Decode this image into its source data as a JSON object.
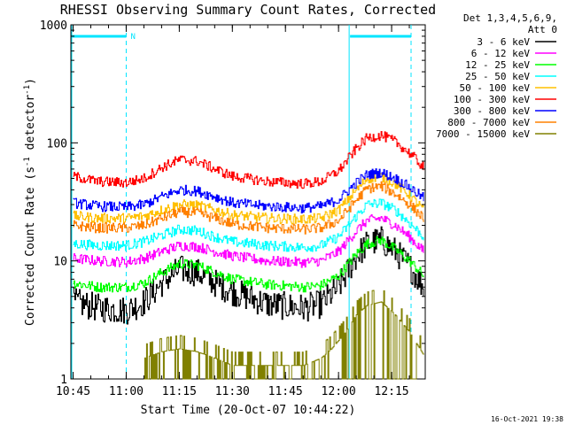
{
  "chart_data": {
    "type": "line",
    "title": "RHESSI Observing Summary Count Rates, Corrected",
    "xlabel": "Start Time (20-Oct-07 10:44:22)",
    "ylabel": "Corrected Count Rate (s",
    "ylabel_sup1": "-1",
    "ylabel_mid": " detector",
    "ylabel_sup2": "-1",
    "ylabel_end": ")",
    "y_scale": "log",
    "ylim": [
      1,
      1000
    ],
    "xlim": [
      "10:44:22",
      "12:24:30"
    ],
    "x_ticks": [
      "10:45",
      "11:00",
      "11:15",
      "11:30",
      "11:45",
      "12:00",
      "12:15"
    ],
    "y_ticks": [
      "1",
      "10",
      "100",
      "1000"
    ],
    "legend_header": [
      "Det 1,3,4,5,6,9,",
      "Att 0"
    ],
    "legend_position": "right",
    "series": [
      {
        "name": "3 - 6 keV",
        "color": "#000000",
        "x": [
          "10:45",
          "10:52",
          "11:00",
          "11:05",
          "11:10",
          "11:15",
          "11:20",
          "11:25",
          "11:30",
          "11:40",
          "11:50",
          "11:55",
          "12:00",
          "12:05",
          "12:08",
          "12:12",
          "12:16",
          "12:20",
          "12:24"
        ],
        "y": [
          4.5,
          4.0,
          3.8,
          4.5,
          6.5,
          8.5,
          8.0,
          6.5,
          5.5,
          4.3,
          4.0,
          4.3,
          6.0,
          11,
          14,
          15,
          12,
          9,
          6
        ]
      },
      {
        "name": "6 - 12 keV",
        "color": "#ff00ff",
        "x": [
          "10:45",
          "10:52",
          "11:00",
          "11:05",
          "11:10",
          "11:15",
          "11:20",
          "11:25",
          "11:30",
          "11:40",
          "11:50",
          "11:55",
          "12:00",
          "12:05",
          "12:08",
          "12:12",
          "12:16",
          "12:20",
          "12:24"
        ],
        "y": [
          10.5,
          10,
          9.8,
          10.5,
          12,
          13.5,
          13.2,
          12,
          11,
          10,
          9.7,
          10,
          12,
          18,
          22,
          23,
          20,
          16,
          12
        ]
      },
      {
        "name": "12 - 25 keV",
        "color": "#00ff00",
        "x": [
          "10:45",
          "10:52",
          "11:00",
          "11:05",
          "11:10",
          "11:15",
          "11:20",
          "11:25",
          "11:30",
          "11:40",
          "11:50",
          "11:55",
          "12:00",
          "12:05",
          "12:08",
          "12:12",
          "12:16",
          "12:20",
          "12:24"
        ],
        "y": [
          6.5,
          6.0,
          6.0,
          6.5,
          8.0,
          9.5,
          9.2,
          8.0,
          7.0,
          6.3,
          6.0,
          6.2,
          7.5,
          11.5,
          14,
          15,
          12.5,
          10,
          7.5
        ]
      },
      {
        "name": "25 - 50 keV",
        "color": "#00ffff",
        "x": [
          "10:45",
          "10:52",
          "11:00",
          "11:05",
          "11:10",
          "11:15",
          "11:20",
          "11:25",
          "11:30",
          "11:40",
          "11:50",
          "11:55",
          "12:00",
          "12:05",
          "12:08",
          "12:12",
          "12:16",
          "12:20",
          "12:24"
        ],
        "y": [
          14,
          13.5,
          13.5,
          14.5,
          16.5,
          18.5,
          18,
          16,
          14.5,
          13.5,
          13,
          13.5,
          16,
          24,
          30,
          31,
          27,
          21,
          16
        ]
      },
      {
        "name": "50 - 100 keV",
        "color": "#ffc000",
        "x": [
          "10:45",
          "10:52",
          "11:00",
          "11:05",
          "11:10",
          "11:15",
          "11:20",
          "11:25",
          "11:30",
          "11:40",
          "11:50",
          "11:55",
          "12:00",
          "12:05",
          "12:08",
          "12:12",
          "12:16",
          "12:20",
          "12:24"
        ],
        "y": [
          24,
          23,
          23,
          24,
          27,
          30,
          29.5,
          27,
          24.5,
          23,
          22.5,
          23,
          27,
          40,
          50,
          52,
          45,
          36,
          27
        ]
      },
      {
        "name": "100 - 300 keV",
        "color": "#ff0000",
        "x": [
          "10:45",
          "10:52",
          "11:00",
          "11:05",
          "11:10",
          "11:15",
          "11:20",
          "11:25",
          "11:30",
          "11:40",
          "11:50",
          "11:55",
          "12:00",
          "12:05",
          "12:08",
          "12:12",
          "12:16",
          "12:20",
          "12:24"
        ],
        "y": [
          52,
          47,
          46,
          50,
          62,
          72,
          70,
          60,
          52,
          47,
          45,
          47,
          58,
          90,
          110,
          116,
          102,
          82,
          62
        ]
      },
      {
        "name": "300 - 800 keV",
        "color": "#0000ff",
        "x": [
          "10:45",
          "10:52",
          "11:00",
          "11:05",
          "11:10",
          "11:15",
          "11:20",
          "11:25",
          "11:30",
          "11:40",
          "11:50",
          "11:55",
          "12:00",
          "12:05",
          "12:08",
          "12:12",
          "12:16",
          "12:20",
          "12:24"
        ],
        "y": [
          31,
          29,
          28.5,
          30,
          35,
          40,
          39,
          35,
          31,
          29,
          28,
          29,
          33,
          46,
          54,
          56,
          50,
          42,
          34
        ]
      },
      {
        "name": "800 - 7000 keV",
        "color": "#ff8000",
        "x": [
          "10:45",
          "10:52",
          "11:00",
          "11:05",
          "11:10",
          "11:15",
          "11:20",
          "11:25",
          "11:30",
          "11:40",
          "11:50",
          "11:55",
          "12:00",
          "12:05",
          "12:08",
          "12:12",
          "12:16",
          "12:20",
          "12:24"
        ],
        "y": [
          20,
          19,
          19,
          20,
          23,
          26,
          25.5,
          23,
          20.5,
          19,
          18.5,
          19,
          22,
          33,
          41,
          43,
          37,
          30,
          23
        ]
      },
      {
        "name": "7000 - 15000 keV",
        "color": "#808000",
        "x": [
          "11:05",
          "11:10",
          "11:15",
          "11:20",
          "11:25",
          "11:30",
          "11:50",
          "11:55",
          "11:58",
          "12:02",
          "12:05",
          "12:08",
          "12:12",
          "12:16",
          "12:20",
          "12:24"
        ],
        "y": [
          1.5,
          1.7,
          1.8,
          1.7,
          1.5,
          1.3,
          1.3,
          1.5,
          1.8,
          2.5,
          3.5,
          4.2,
          4.5,
          3.5,
          2.5,
          1.6
        ]
      }
    ],
    "annotations": [
      {
        "text": "N",
        "x": "11:00"
      }
    ],
    "markers": {
      "bars": [
        [
          "10:44:22",
          "11:00"
        ],
        [
          "12:03",
          "12:24"
        ]
      ],
      "dashed_lines": [
        "11:00",
        "12:24"
      ],
      "solid_lines": [
        "10:44:22",
        "12:03"
      ]
    },
    "footer": "16-Oct-2021 19:38"
  }
}
